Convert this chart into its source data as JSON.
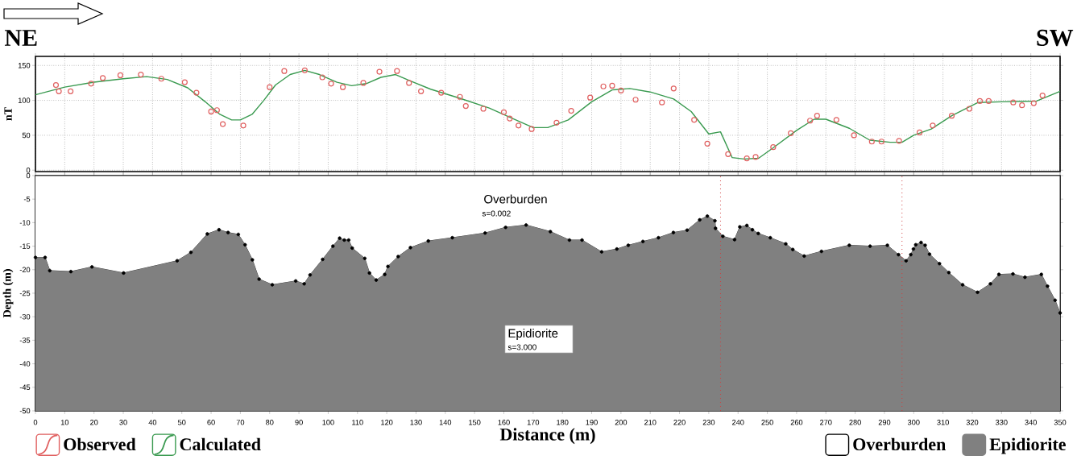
{
  "chart_data": [
    {
      "type": "line",
      "ylabel": "nT",
      "xlim": [
        0,
        350
      ],
      "xticks": [
        0,
        10,
        20,
        30,
        40,
        50,
        60,
        70,
        80,
        90,
        100,
        110,
        120,
        130,
        140,
        150,
        160,
        170,
        180,
        190,
        200,
        210,
        220,
        230,
        240,
        250,
        260,
        270,
        280,
        290,
        300,
        310,
        320,
        330,
        340,
        350
      ],
      "ylim": [
        -2,
        163
      ],
      "yticks": [
        0,
        50,
        100,
        150
      ],
      "grid": true,
      "legend": "bottom left",
      "tick_labels": "y",
      "annotations": [
        "NE",
        "SW"
      ],
      "series": [
        {
          "name": "Observed",
          "type": "scatter",
          "color": "#e06060",
          "marker": "circle",
          "x": [
            7,
            8,
            12,
            19,
            23,
            29,
            36,
            43,
            51,
            55,
            60,
            62,
            64,
            71,
            80,
            85,
            92,
            98,
            101,
            105,
            112,
            117.5,
            123.5,
            127.6,
            131.7,
            138.6,
            145,
            147,
            153,
            160,
            162,
            165,
            169.5,
            178,
            183,
            189.5,
            194,
            197,
            200,
            205,
            214,
            218,
            225,
            229.5,
            236.6,
            243,
            246,
            252,
            258,
            264.6,
            267,
            273.6,
            279.6,
            285.7,
            289,
            295,
            302,
            306.5,
            313,
            319,
            322.6,
            325.6,
            334,
            337,
            341,
            344
          ],
          "values": [
            122,
            113,
            113,
            124,
            132,
            136,
            137,
            131,
            126,
            111,
            84,
            86,
            66,
            64,
            119,
            142,
            143,
            133,
            124,
            119,
            125,
            141,
            142,
            125,
            113,
            111,
            105,
            92,
            88,
            83,
            74,
            64,
            59,
            68,
            85,
            104,
            120,
            121,
            114,
            101,
            97,
            117,
            72,
            38,
            23,
            17,
            19,
            33,
            53,
            71,
            78,
            72,
            50,
            41,
            41,
            42,
            54,
            64,
            78,
            88,
            99,
            99,
            97,
            93,
            96,
            107
          ]
        },
        {
          "name": "Calculated",
          "type": "line",
          "color": "#3a9a50",
          "x": [
            0,
            10,
            20,
            30,
            38,
            45,
            52,
            58,
            63,
            67,
            70,
            74,
            78,
            82,
            87,
            92,
            97,
            103,
            108,
            113,
            118,
            123,
            128,
            135,
            145,
            155,
            163,
            170,
            175,
            182,
            190,
            197,
            203,
            210,
            218,
            224,
            230,
            234,
            238,
            242,
            247,
            252,
            260,
            266,
            270,
            278,
            285,
            292,
            296,
            300,
            306,
            313,
            322,
            330,
            342,
            350
          ],
          "values": [
            108,
            119,
            126,
            131,
            134,
            130,
            118,
            98,
            80,
            72,
            72,
            80,
            100,
            122,
            137,
            143,
            137,
            126,
            121,
            124,
            133,
            137,
            128,
            116,
            103,
            89,
            74,
            61,
            61,
            72,
            98,
            115,
            117,
            112,
            102,
            84,
            52,
            55,
            18,
            16,
            17,
            32,
            57,
            73,
            73,
            60,
            43,
            40,
            40,
            50,
            59,
            78,
            97,
            98,
            99,
            113
          ]
        }
      ]
    },
    {
      "type": "area",
      "xlabel": "Distance (m)",
      "ylabel": "Depth (m)",
      "xlim": [
        0,
        350
      ],
      "xticks": [
        0,
        10,
        20,
        30,
        40,
        50,
        60,
        70,
        80,
        90,
        100,
        110,
        120,
        130,
        140,
        150,
        160,
        170,
        180,
        190,
        200,
        210,
        220,
        230,
        240,
        250,
        260,
        270,
        280,
        290,
        300,
        310,
        320,
        330,
        340,
        350
      ],
      "ylim": [
        -50,
        0
      ],
      "yticks": [
        -50,
        -45,
        -40,
        -35,
        -30,
        -25,
        -20,
        -15,
        -10,
        -5,
        0
      ],
      "legend": "bottom right",
      "stacked": true,
      "ref_lines": [
        {
          "axis": "x",
          "value": 234,
          "color": "#d04040",
          "line_style": "dotted"
        },
        {
          "axis": "x",
          "value": 296,
          "color": "#d04040",
          "line_style": "dotted"
        }
      ],
      "annotations": [
        "Overburden",
        "s=0.002",
        "Epidiorite",
        "s=3.000"
      ],
      "series": [
        {
          "name": "Overburden",
          "color": "#ffffff",
          "marker": "circle",
          "x": [
            0,
            3.3,
            4.9,
            12.1,
            19.3,
            30.1,
            48.4,
            53.1,
            58.7,
            62.7,
            65.8,
            69.3,
            71.6,
            74.1,
            76.4,
            80.9,
            88.9,
            91.8,
            93.8,
            98.1,
            101.6,
            103.9,
            105.5,
            107,
            108.2,
            112.5,
            114.1,
            116.4,
            119.3,
            120.4,
            123.9,
            128.1,
            134.2,
            142.4,
            153.6,
            160.6,
            167.6,
            175.9,
            182.4,
            186.7,
            193.4,
            198.6,
            202.5,
            207.5,
            212.8,
            217.9,
            222.6,
            226.9,
            229.5,
            232.1,
            232.3,
            234.8,
            238.8,
            240.6,
            243,
            244.9,
            246.9,
            251,
            256.3,
            258.7,
            262.6,
            268.5,
            278,
            285.1,
            291,
            294.8,
            297.4,
            299,
            299.9,
            300.7,
            302.5,
            303.9,
            305.4,
            308.8,
            312,
            316.7,
            321.8,
            326.2,
            329.1,
            333.9,
            338,
            343.6,
            345.7,
            348.3,
            350
          ],
          "values": [
            -17.4,
            -17.4,
            -20.2,
            -20.4,
            -19.4,
            -20.7,
            -18.1,
            -16.3,
            -12.4,
            -11.5,
            -12.1,
            -12.5,
            -14.7,
            -17.9,
            -22,
            -23.2,
            -22.4,
            -23,
            -21.1,
            -17.8,
            -15,
            -13.3,
            -13.7,
            -13.7,
            -15.4,
            -17.6,
            -20.7,
            -22.2,
            -21,
            -19.3,
            -17.2,
            -15.3,
            -13.9,
            -13.2,
            -12.2,
            -11,
            -10.5,
            -11.9,
            -13.7,
            -13.7,
            -16.2,
            -15.6,
            -14.8,
            -14,
            -13.2,
            -12.1,
            -11.6,
            -9.4,
            -8.6,
            -9.6,
            -11.2,
            -12.9,
            -13.6,
            -10.9,
            -10.6,
            -11.5,
            -12.3,
            -13.2,
            -14.5,
            -15.7,
            -17.1,
            -16.1,
            -14.8,
            -15,
            -14.8,
            -16.8,
            -18.1,
            -16.8,
            -15.6,
            -14.7,
            -14.2,
            -14.8,
            -16.7,
            -18.7,
            -20.6,
            -23.2,
            -24.8,
            -23,
            -21,
            -20.9,
            -21.6,
            -21,
            -23.5,
            -26.5,
            -29.2
          ]
        },
        {
          "name": "Epidiorite",
          "color": "#808080",
          "x": [
            0,
            3.3,
            4.9,
            12.1,
            19.3,
            30.1,
            48.4,
            53.1,
            58.7,
            62.7,
            65.8,
            69.3,
            71.6,
            74.1,
            76.4,
            80.9,
            88.9,
            91.8,
            93.8,
            98.1,
            101.6,
            103.9,
            105.5,
            107,
            108.2,
            112.5,
            114.1,
            116.4,
            119.3,
            120.4,
            123.9,
            128.1,
            134.2,
            142.4,
            153.6,
            160.6,
            167.6,
            175.9,
            182.4,
            186.7,
            193.4,
            198.6,
            202.5,
            207.5,
            212.8,
            217.9,
            222.6,
            226.9,
            229.5,
            232.1,
            232.3,
            234.8,
            238.8,
            240.6,
            243,
            244.9,
            246.9,
            251,
            256.3,
            258.7,
            262.6,
            268.5,
            278,
            285.1,
            291,
            294.8,
            297.4,
            299,
            299.9,
            300.7,
            302.5,
            303.9,
            305.4,
            308.8,
            312,
            316.7,
            321.8,
            326.2,
            329.1,
            333.9,
            338,
            343.6,
            345.7,
            348.3,
            350
          ],
          "values": [
            -32.6,
            -32.6,
            -29.8,
            -29.6,
            -30.6,
            -29.3,
            -31.9,
            -33.7,
            -37.6,
            -38.5,
            -37.9,
            -37.5,
            -35.3,
            -32.1,
            -28,
            -26.8,
            -27.6,
            -27,
            -28.9,
            -32.2,
            -35,
            -36.7,
            -36.3,
            -36.3,
            -34.6,
            -32.4,
            -29.3,
            -27.8,
            -29,
            -30.7,
            -32.8,
            -34.7,
            -36.1,
            -36.8,
            -37.8,
            -39,
            -39.5,
            -38.1,
            -36.3,
            -36.3,
            -33.8,
            -34.4,
            -35.2,
            -36,
            -36.8,
            -37.9,
            -38.4,
            -40.6,
            -41.4,
            -40.4,
            -38.8,
            -37.1,
            -36.4,
            -39.1,
            -39.4,
            -38.5,
            -37.7,
            -36.8,
            -35.5,
            -34.3,
            -32.9,
            -33.9,
            -35.2,
            -35,
            -35.2,
            -33.2,
            -31.9,
            -33.2,
            -34.4,
            -35.3,
            -35.8,
            -35.2,
            -33.3,
            -31.3,
            -29.4,
            -26.8,
            -25.2,
            -27,
            -29,
            -29.1,
            -28.4,
            -29,
            -26.5,
            -23.5,
            -20.8
          ]
        }
      ]
    }
  ]
}
